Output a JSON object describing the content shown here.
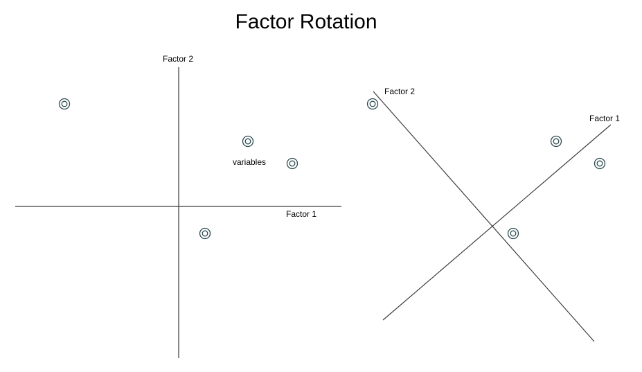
{
  "title": "Factor Rotation",
  "left_panel": {
    "x_axis_label": "Factor 1",
    "y_axis_label": "Factor 2",
    "annotation": "variables",
    "point_icon": "concentric-circle-icon"
  },
  "right_panel": {
    "axis1_label": "Factor 1",
    "axis2_label": "Factor 2",
    "point_icon": "concentric-circle-icon"
  },
  "colors": {
    "axis": "#3a3a3a",
    "point": "#2b4a4f"
  }
}
